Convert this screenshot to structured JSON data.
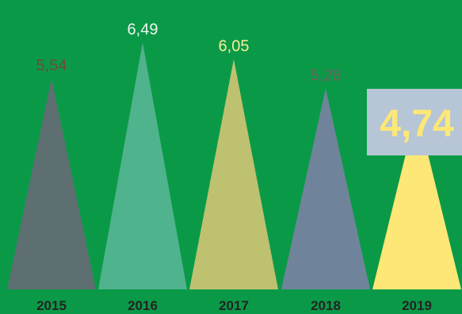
{
  "chart_data": {
    "type": "bar",
    "bar_shape": "triangle",
    "categories": [
      "2015",
      "2016",
      "2017",
      "2018",
      "2019"
    ],
    "values": [
      5.54,
      6.49,
      6.05,
      5.28,
      4.74
    ],
    "value_labels": [
      "5,54",
      "6,49",
      "6,05",
      "5,28",
      "4,74"
    ],
    "bar_colors": [
      "#5e6f72",
      "#4fb38d",
      "#bec170",
      "#6f849a",
      "#fde776"
    ],
    "value_label_colors": [
      "#6e4b3f",
      "#f2f2f2",
      "#f6ee9a",
      "#6a5f60",
      "#fde776"
    ],
    "highlighted_index": 4,
    "background": "#0a9a47",
    "year_label_color": "#232323",
    "title": "",
    "xlabel": "",
    "ylabel": "",
    "ylim": [
      0,
      6.6
    ],
    "grid": false
  }
}
